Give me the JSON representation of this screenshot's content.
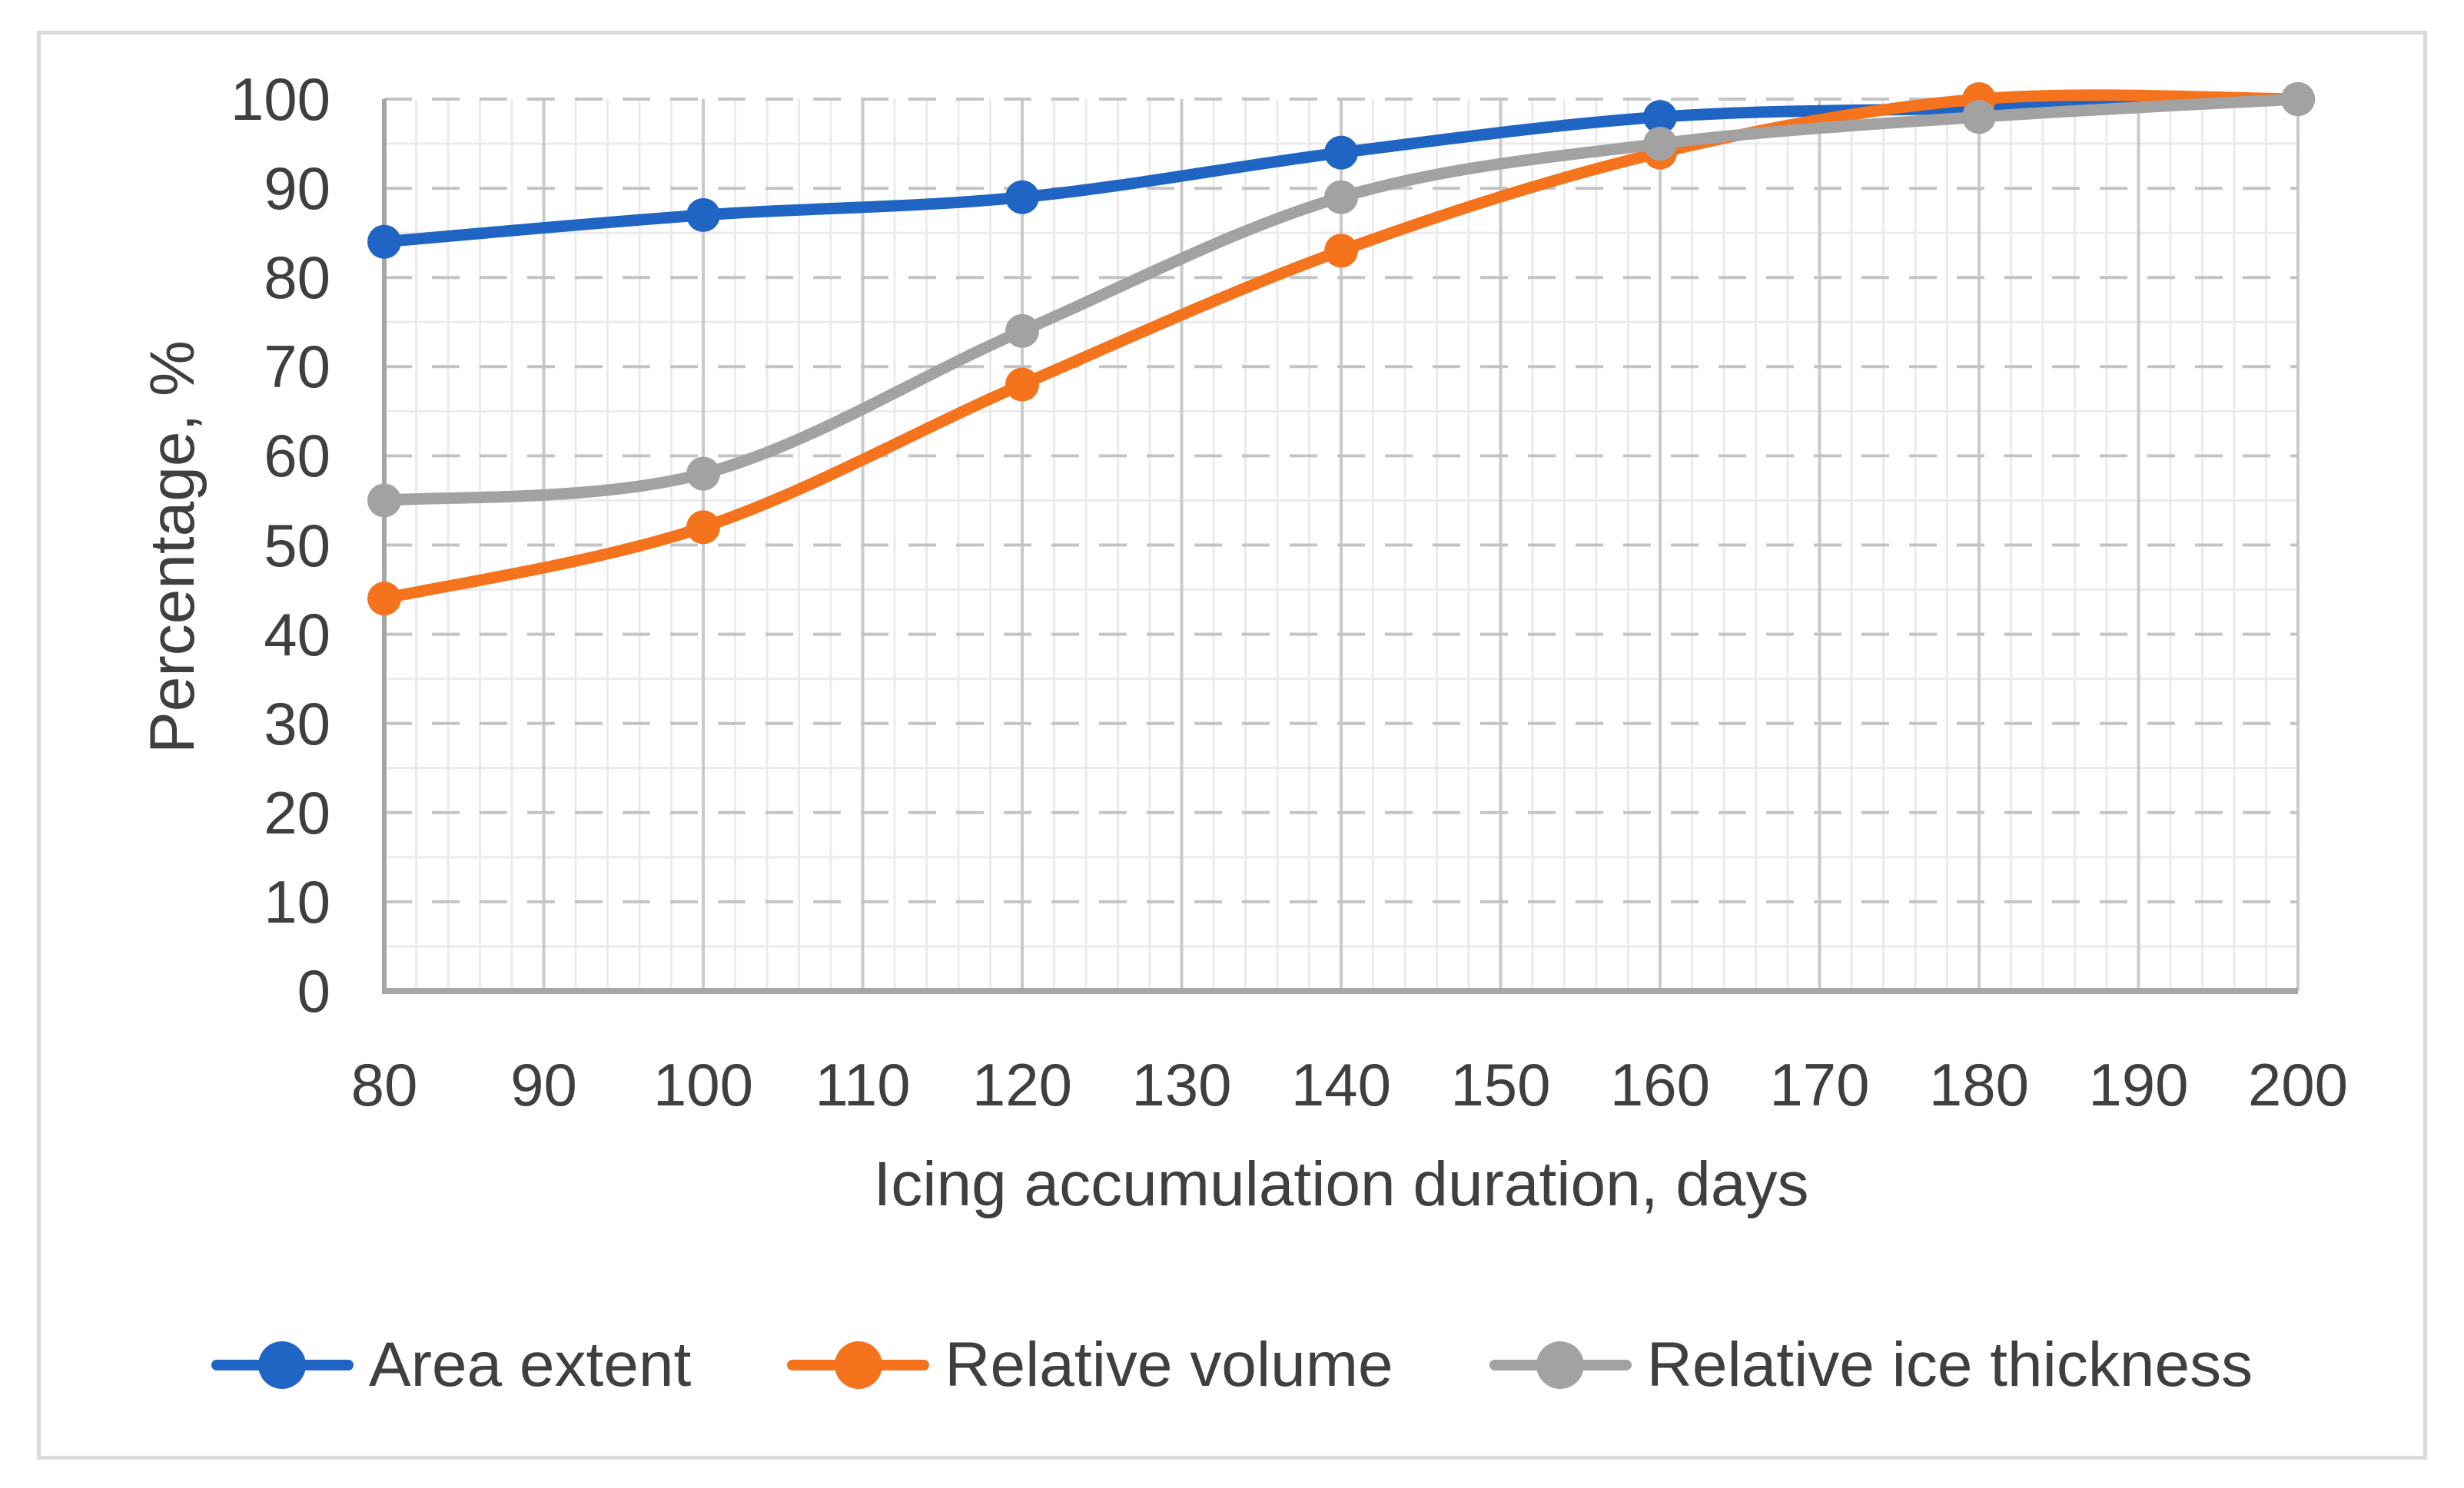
{
  "figure": {
    "background": "#FFFFFF",
    "border_color": "#DBDBDB"
  },
  "chart_data": {
    "type": "line",
    "title": "",
    "xlabel": "Icing accumulation duration, days",
    "ylabel": "Percentage, %",
    "x": [
      80,
      100,
      120,
      140,
      160,
      180,
      200
    ],
    "series": [
      {
        "name": "Area extent",
        "color": "#2065C4",
        "values": [
          84,
          87,
          89,
          94,
          98,
          99,
          100
        ]
      },
      {
        "name": "Relative volume",
        "color": "#F4731C",
        "values": [
          44,
          52,
          68,
          83,
          94,
          100,
          100
        ]
      },
      {
        "name": "Relative ice thickness",
        "color": "#A2A2A2",
        "values": [
          55,
          58,
          74,
          89,
          95,
          98,
          100
        ]
      }
    ],
    "xlim": [
      80,
      200
    ],
    "ylim": [
      0,
      100
    ],
    "x_ticks": [
      80,
      90,
      100,
      110,
      120,
      130,
      140,
      150,
      160,
      170,
      180,
      190,
      200
    ],
    "y_ticks": [
      0,
      10,
      20,
      30,
      40,
      50,
      60,
      70,
      80,
      90,
      100
    ],
    "x_minor_step": 2,
    "y_minor_step": 5,
    "grid": {
      "major_h_style": "dashed",
      "major_h_color": "#C4C4C4",
      "major_v_style": "solid",
      "major_v_color": "#CACACA",
      "minor_color": "#EBEBEB",
      "axis_color": "#A6A6A6"
    },
    "smooth": true,
    "legend_position": "bottom",
    "marker": "circle"
  }
}
